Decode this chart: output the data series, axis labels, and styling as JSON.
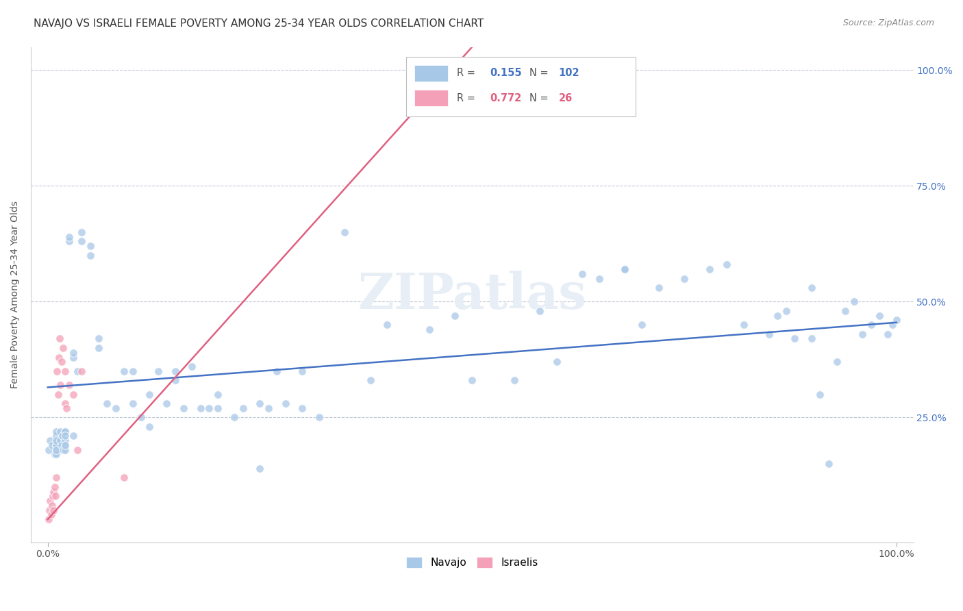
{
  "title": "NAVAJO VS ISRAELI FEMALE POVERTY AMONG 25-34 YEAR OLDS CORRELATION CHART",
  "source": "Source: ZipAtlas.com",
  "ylabel": "Female Poverty Among 25-34 Year Olds",
  "navajo_r": 0.155,
  "navajo_n": 102,
  "israeli_r": 0.772,
  "israeli_n": 26,
  "navajo_color": "#a8c8e8",
  "israeli_color": "#f4a0b8",
  "navajo_line_color": "#4472c4",
  "israeli_line_color": "#e06080",
  "watermark_color": "#e8eef5",
  "grid_color": "#c0c8d8",
  "background_color": "#ffffff",
  "title_fontsize": 11,
  "marker_size": 70,
  "marker_alpha": 0.75,
  "navajo_x": [
    0.001,
    0.003,
    0.005,
    0.008,
    0.01,
    0.01,
    0.01,
    0.01,
    0.01,
    0.01,
    0.01,
    0.01,
    0.01,
    0.01,
    0.015,
    0.015,
    0.016,
    0.017,
    0.018,
    0.02,
    0.02,
    0.02,
    0.02,
    0.02,
    0.02,
    0.02,
    0.025,
    0.025,
    0.03,
    0.03,
    0.03,
    0.035,
    0.04,
    0.04,
    0.05,
    0.05,
    0.06,
    0.06,
    0.07,
    0.08,
    0.09,
    0.1,
    0.1,
    0.11,
    0.12,
    0.12,
    0.13,
    0.14,
    0.15,
    0.15,
    0.16,
    0.17,
    0.18,
    0.19,
    0.2,
    0.2,
    0.22,
    0.23,
    0.25,
    0.25,
    0.26,
    0.27,
    0.28,
    0.3,
    0.3,
    0.32,
    0.35,
    0.38,
    0.4,
    0.45,
    0.48,
    0.5,
    0.55,
    0.58,
    0.6,
    0.65,
    0.68,
    0.7,
    0.72,
    0.75,
    0.78,
    0.8,
    0.82,
    0.85,
    0.86,
    0.87,
    0.88,
    0.9,
    0.9,
    0.91,
    0.92,
    0.93,
    0.94,
    0.95,
    0.96,
    0.97,
    0.98,
    0.99,
    0.995,
    1.0,
    0.63,
    0.68
  ],
  "navajo_y": [
    0.18,
    0.2,
    0.19,
    0.17,
    0.2,
    0.21,
    0.19,
    0.18,
    0.17,
    0.21,
    0.19,
    0.22,
    0.2,
    0.18,
    0.22,
    0.2,
    0.19,
    0.21,
    0.18,
    0.19,
    0.22,
    0.2,
    0.18,
    0.22,
    0.21,
    0.19,
    0.63,
    0.64,
    0.38,
    0.39,
    0.21,
    0.35,
    0.65,
    0.63,
    0.62,
    0.6,
    0.42,
    0.4,
    0.28,
    0.27,
    0.35,
    0.28,
    0.35,
    0.25,
    0.3,
    0.23,
    0.35,
    0.28,
    0.33,
    0.35,
    0.27,
    0.36,
    0.27,
    0.27,
    0.3,
    0.27,
    0.25,
    0.27,
    0.14,
    0.28,
    0.27,
    0.35,
    0.28,
    0.35,
    0.27,
    0.25,
    0.65,
    0.33,
    0.45,
    0.44,
    0.47,
    0.33,
    0.33,
    0.48,
    0.37,
    0.55,
    0.57,
    0.45,
    0.53,
    0.55,
    0.57,
    0.58,
    0.45,
    0.43,
    0.47,
    0.48,
    0.42,
    0.42,
    0.53,
    0.3,
    0.15,
    0.37,
    0.48,
    0.5,
    0.43,
    0.45,
    0.47,
    0.43,
    0.45,
    0.46,
    0.56,
    0.57
  ],
  "israeli_x": [
    0.001,
    0.002,
    0.003,
    0.004,
    0.005,
    0.006,
    0.007,
    0.007,
    0.008,
    0.009,
    0.01,
    0.011,
    0.012,
    0.013,
    0.014,
    0.015,
    0.016,
    0.018,
    0.02,
    0.02,
    0.022,
    0.025,
    0.03,
    0.035,
    0.04,
    0.09
  ],
  "israeli_y": [
    0.03,
    0.05,
    0.07,
    0.04,
    0.06,
    0.08,
    0.05,
    0.09,
    0.1,
    0.08,
    0.12,
    0.35,
    0.3,
    0.38,
    0.42,
    0.32,
    0.37,
    0.4,
    0.28,
    0.35,
    0.27,
    0.32,
    0.3,
    0.18,
    0.35,
    0.12
  ],
  "navajo_line_x0": 0.0,
  "navajo_line_y0": 0.315,
  "navajo_line_x1": 1.0,
  "navajo_line_y1": 0.455,
  "israeli_line_x0": 0.0,
  "israeli_line_y0": 0.03,
  "israeli_line_x1": 0.5,
  "israeli_line_y1": 1.05,
  "xlim": [
    -0.02,
    1.02
  ],
  "ylim": [
    -0.02,
    1.05
  ]
}
